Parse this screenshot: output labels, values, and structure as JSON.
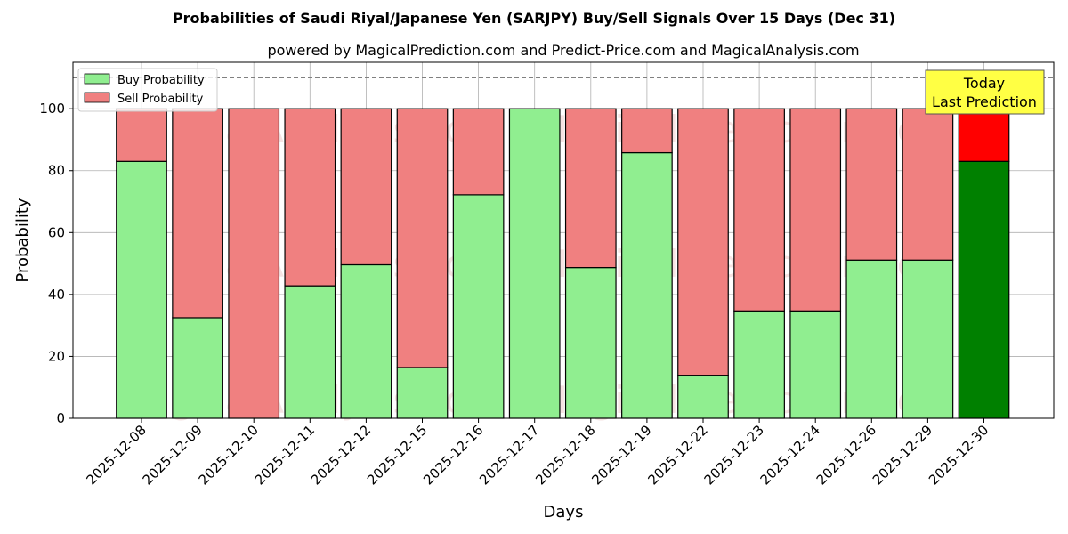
{
  "chart_data": {
    "type": "bar",
    "stacked": true,
    "title": "Probabilities of Saudi Riyal/Japanese Yen (SARJPY) Buy/Sell Signals Over 15 Days (Dec 31)",
    "subtitle": "powered by MagicalPrediction.com and Predict-Price.com and MagicalAnalysis.com",
    "xlabel": "Days",
    "ylabel": "Probability",
    "ylim": [
      0,
      115
    ],
    "yticks": [
      "0",
      "20",
      "40",
      "60",
      "80",
      "100"
    ],
    "grid": true,
    "legend_position": "top-left",
    "reference_line": 110,
    "categories": [
      "2025-12-08",
      "2025-12-09",
      "2025-12-10",
      "2025-12-11",
      "2025-12-12",
      "2025-12-15",
      "2025-12-16",
      "2025-12-17",
      "2025-12-18",
      "2025-12-19",
      "2025-12-22",
      "2025-12-23",
      "2025-12-24",
      "2025-12-26",
      "2025-12-29",
      "2025-12-30"
    ],
    "series": [
      {
        "name": "Buy Probability",
        "color": "#90ee90",
        "values": [
          83,
          32.5,
          0,
          42.8,
          49.6,
          16.4,
          72.2,
          100,
          48.7,
          85.8,
          13.9,
          34.7,
          34.7,
          51.1,
          51.1,
          83
        ]
      },
      {
        "name": "Sell Probability",
        "color": "#f08080",
        "values": [
          17,
          67.5,
          100,
          57.2,
          50.4,
          83.6,
          27.8,
          0,
          51.3,
          14.2,
          86.1,
          65.3,
          65.3,
          48.9,
          48.9,
          17
        ]
      }
    ],
    "highlight": {
      "index": 15,
      "buy_color": "#008000",
      "sell_color": "#ff0000"
    },
    "annotation": {
      "line1": "Today",
      "line2": "Last Prediction",
      "fill": "#ffff44"
    },
    "watermarks": [
      "MagicalAnalysis.com",
      "MagicalPrediction.com"
    ]
  }
}
